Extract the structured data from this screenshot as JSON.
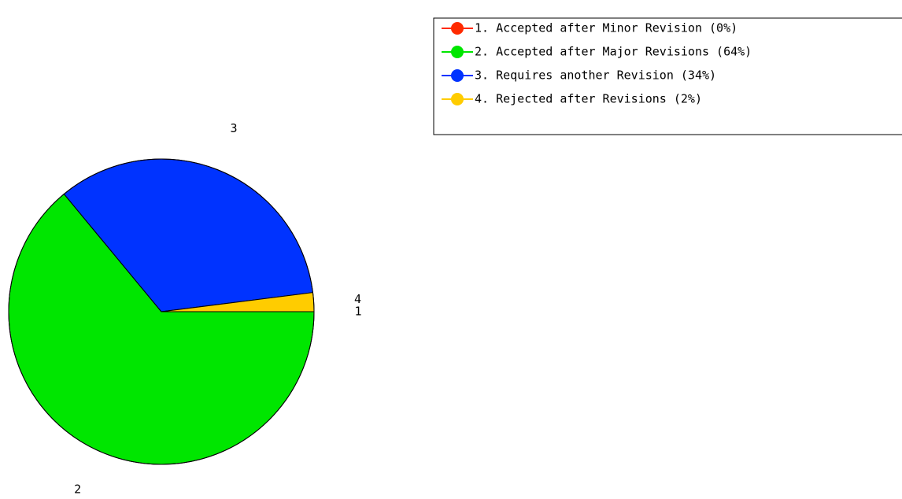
{
  "chart_data": {
    "type": "pie",
    "title": "",
    "slices": [
      {
        "label": "1",
        "legend": "1. Accepted after Minor Revision (0%)",
        "value": 0,
        "color": "#ff2a00"
      },
      {
        "label": "2",
        "legend": "2. Accepted after Major Revisions (64%)",
        "value": 64,
        "color": "#00e600"
      },
      {
        "label": "3",
        "legend": "3. Requires another Revision (34%)",
        "value": 34,
        "color": "#0033ff"
      },
      {
        "label": "4",
        "legend": "4. Rejected after Revisions (2%)",
        "value": 2,
        "color": "#ffcc00"
      }
    ],
    "legend_position": "top-right",
    "start_angle_deg": 0,
    "direction": "clockwise"
  }
}
